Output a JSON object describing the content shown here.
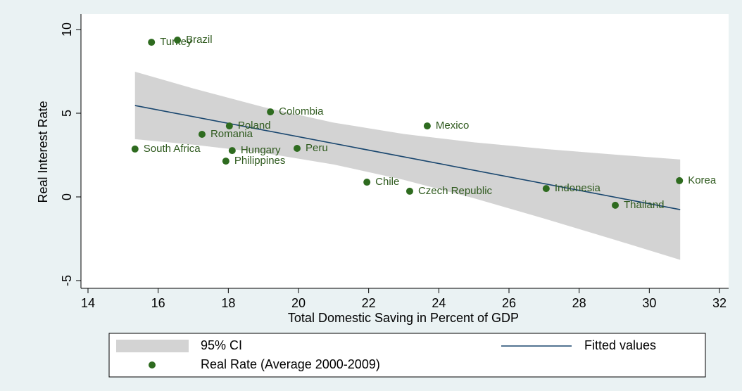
{
  "chart_data": {
    "type": "scatter",
    "x_label": "Total Domestic Saving in Percent of GDP",
    "y_label": "Real Interest Rate",
    "xlim": [
      14,
      32
    ],
    "xticks": [
      14,
      16,
      18,
      20,
      22,
      24,
      26,
      28,
      30,
      32
    ],
    "ylim": [
      -5,
      10
    ],
    "yticks": [
      -5,
      0,
      5,
      10
    ],
    "grid": false,
    "legend_position": "bottom",
    "ci": {
      "name": "95% CI",
      "color": "#d3d3d3",
      "x": [
        15.34,
        17,
        19,
        21,
        23,
        25,
        27,
        29,
        30.88
      ],
      "upper": [
        7.48,
        6.48,
        5.37,
        4.44,
        3.76,
        3.26,
        2.87,
        2.53,
        2.24
      ],
      "lower": [
        3.45,
        3.12,
        2.63,
        1.94,
        1.02,
        -0.08,
        -1.29,
        -2.55,
        -3.76
      ]
    },
    "fit": {
      "name": "Fitted values",
      "color": "#1a476f",
      "x": [
        15.34,
        30.88
      ],
      "values": [
        5.46,
        -0.76
      ]
    },
    "points": {
      "name": "Real Rate (Average 2000-2009)",
      "color": "#2e6b1f",
      "labels": [
        "Turkey",
        "Brazil",
        "Colombia",
        "Poland",
        "Romania",
        "Mexico",
        "South Africa",
        "Hungary",
        "Peru",
        "Philippines",
        "Chile",
        "Czech Republic",
        "Indonesia",
        "Korea",
        "Thailand"
      ],
      "x": [
        15.81,
        16.55,
        19.2,
        18.03,
        17.25,
        23.67,
        15.34,
        18.11,
        19.96,
        17.93,
        21.95,
        23.17,
        27.06,
        30.86,
        29.03
      ],
      "values": [
        9.24,
        9.37,
        5.08,
        4.24,
        3.74,
        4.24,
        2.86,
        2.77,
        2.9,
        2.14,
        0.88,
        0.34,
        0.5,
        0.97,
        -0.5
      ]
    }
  }
}
